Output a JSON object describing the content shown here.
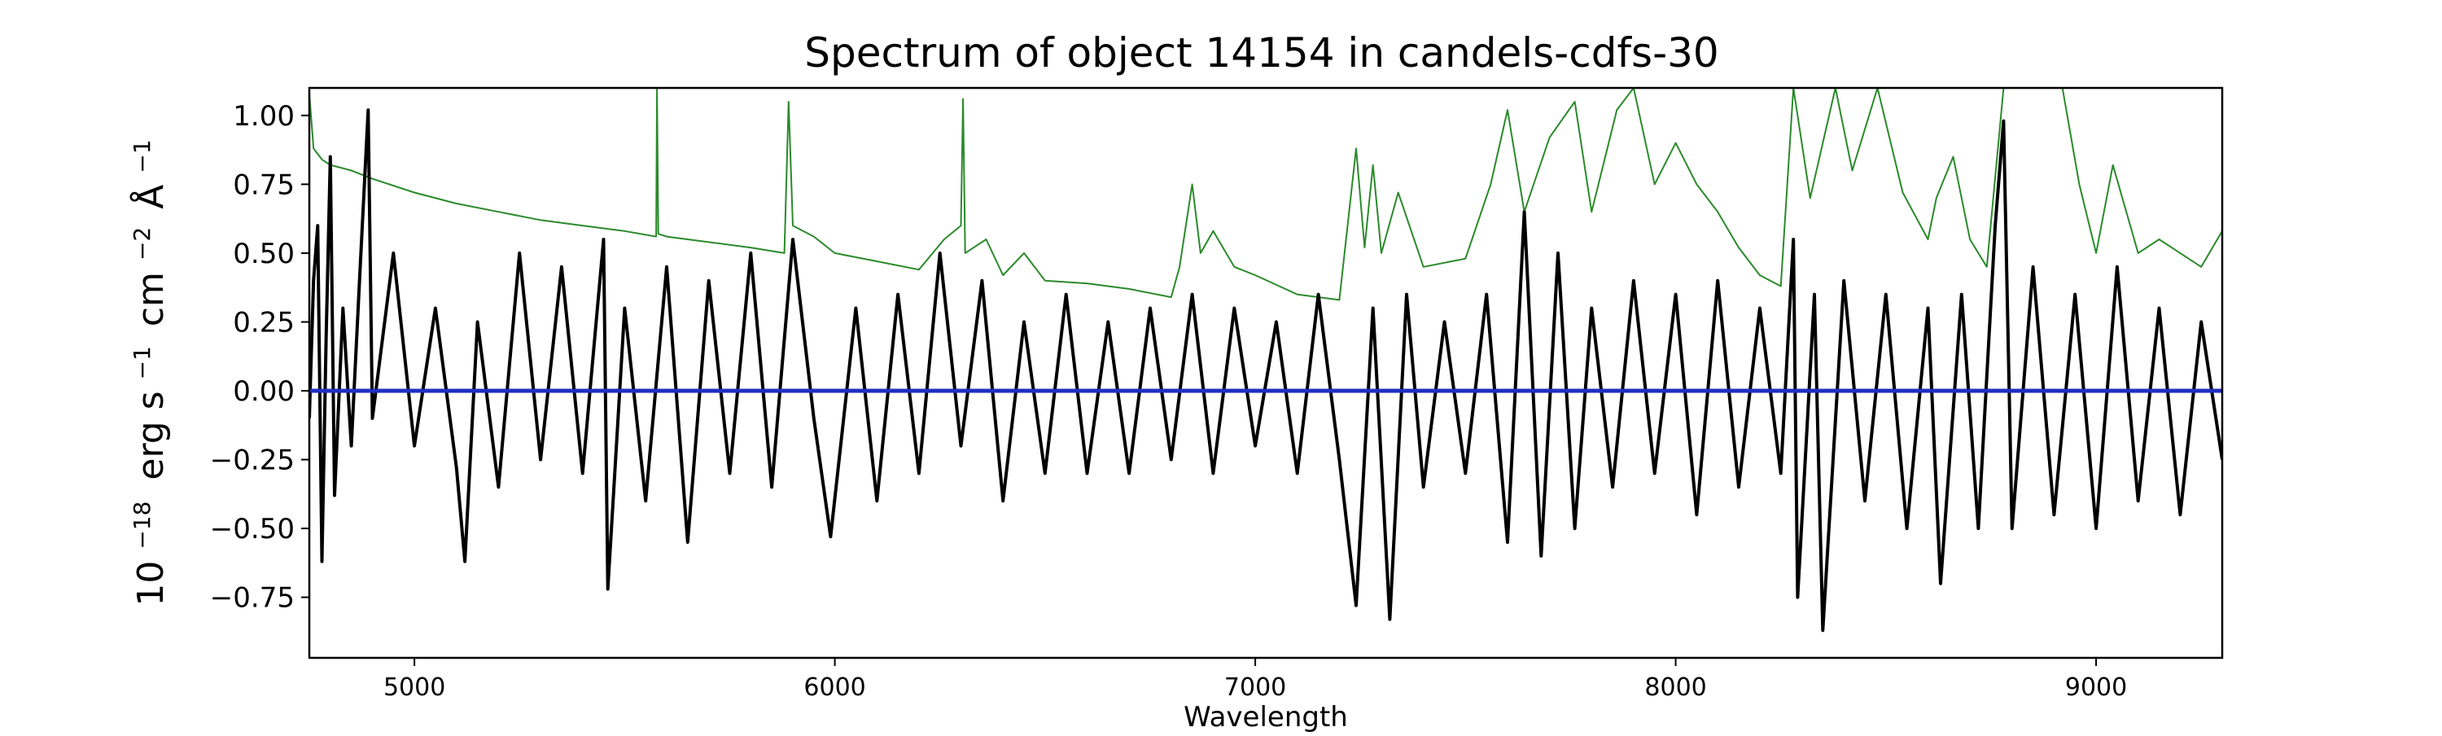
{
  "chart_data": {
    "type": "line",
    "title": "Spectrum of object 14154 in candels-cdfs-30",
    "xlabel": "Wavelength",
    "ylabel": {
      "base": "10",
      "base_exp": "−18",
      "erg": "erg s",
      "s_exp": "−1",
      "cm": "cm",
      "cm_exp": "−2",
      "angstrom": "Å",
      "a_exp": "−1"
    },
    "xlim": [
      4750,
      9300
    ],
    "ylim": [
      -0.97,
      1.1
    ],
    "x_ticks": [
      5000,
      6000,
      7000,
      8000,
      9000
    ],
    "x_tick_labels": [
      "5000",
      "6000",
      "7000",
      "8000",
      "9000"
    ],
    "y_ticks": [
      1.0,
      0.75,
      0.5,
      0.25,
      0.0,
      -0.25,
      -0.5,
      -0.75
    ],
    "y_tick_labels": [
      "1.00",
      "0.75",
      "0.50",
      "0.25",
      "0.00",
      "−0.25",
      "−0.50",
      "−0.75"
    ],
    "grid": false,
    "legend": "none",
    "series": [
      {
        "role": "noise",
        "color": "#2b8a2b",
        "points": [
          [
            4750,
            1.08
          ],
          [
            4760,
            0.88
          ],
          [
            4780,
            0.84
          ],
          [
            4800,
            0.82
          ],
          [
            4850,
            0.8
          ],
          [
            4900,
            0.77
          ],
          [
            5000,
            0.72
          ],
          [
            5100,
            0.68
          ],
          [
            5200,
            0.65
          ],
          [
            5300,
            0.62
          ],
          [
            5400,
            0.6
          ],
          [
            5500,
            0.58
          ],
          [
            5575,
            0.56
          ],
          [
            5577,
            1.1
          ],
          [
            5580,
            0.57
          ],
          [
            5600,
            0.56
          ],
          [
            5700,
            0.54
          ],
          [
            5800,
            0.52
          ],
          [
            5880,
            0.5
          ],
          [
            5890,
            1.05
          ],
          [
            5900,
            0.6
          ],
          [
            5950,
            0.56
          ],
          [
            6000,
            0.5
          ],
          [
            6100,
            0.47
          ],
          [
            6200,
            0.44
          ],
          [
            6260,
            0.55
          ],
          [
            6300,
            0.6
          ],
          [
            6305,
            1.06
          ],
          [
            6310,
            0.5
          ],
          [
            6360,
            0.55
          ],
          [
            6400,
            0.42
          ],
          [
            6450,
            0.5
          ],
          [
            6500,
            0.4
          ],
          [
            6600,
            0.39
          ],
          [
            6700,
            0.37
          ],
          [
            6800,
            0.34
          ],
          [
            6820,
            0.45
          ],
          [
            6850,
            0.75
          ],
          [
            6870,
            0.5
          ],
          [
            6900,
            0.58
          ],
          [
            6950,
            0.45
          ],
          [
            7000,
            0.42
          ],
          [
            7100,
            0.35
          ],
          [
            7200,
            0.33
          ],
          [
            7240,
            0.88
          ],
          [
            7260,
            0.52
          ],
          [
            7280,
            0.82
          ],
          [
            7300,
            0.5
          ],
          [
            7340,
            0.72
          ],
          [
            7400,
            0.45
          ],
          [
            7500,
            0.48
          ],
          [
            7560,
            0.75
          ],
          [
            7600,
            1.02
          ],
          [
            7640,
            0.65
          ],
          [
            7700,
            0.92
          ],
          [
            7760,
            1.05
          ],
          [
            7800,
            0.65
          ],
          [
            7860,
            1.02
          ],
          [
            7900,
            1.1
          ],
          [
            7950,
            0.75
          ],
          [
            8000,
            0.9
          ],
          [
            8050,
            0.75
          ],
          [
            8100,
            0.65
          ],
          [
            8150,
            0.52
          ],
          [
            8200,
            0.42
          ],
          [
            8250,
            0.38
          ],
          [
            8280,
            1.1
          ],
          [
            8320,
            0.7
          ],
          [
            8380,
            1.1
          ],
          [
            8420,
            0.8
          ],
          [
            8480,
            1.1
          ],
          [
            8540,
            0.72
          ],
          [
            8600,
            0.55
          ],
          [
            8620,
            0.7
          ],
          [
            8660,
            0.85
          ],
          [
            8700,
            0.55
          ],
          [
            8740,
            0.45
          ],
          [
            8780,
            1.1
          ],
          [
            8820,
            1.1
          ],
          [
            8880,
            1.1
          ],
          [
            8920,
            1.1
          ],
          [
            8960,
            0.75
          ],
          [
            9000,
            0.5
          ],
          [
            9040,
            0.82
          ],
          [
            9100,
            0.5
          ],
          [
            9150,
            0.55
          ],
          [
            9200,
            0.5
          ],
          [
            9250,
            0.45
          ],
          [
            9300,
            0.58
          ]
        ]
      },
      {
        "role": "flux",
        "color": "#000000",
        "points": [
          [
            4750,
            -0.1
          ],
          [
            4760,
            0.4
          ],
          [
            4770,
            0.6
          ],
          [
            4780,
            -0.62
          ],
          [
            4790,
            0.2
          ],
          [
            4800,
            0.85
          ],
          [
            4810,
            -0.38
          ],
          [
            4830,
            0.3
          ],
          [
            4850,
            -0.2
          ],
          [
            4870,
            0.42
          ],
          [
            4890,
            1.02
          ],
          [
            4900,
            -0.1
          ],
          [
            4950,
            0.5
          ],
          [
            5000,
            -0.2
          ],
          [
            5050,
            0.3
          ],
          [
            5100,
            -0.28
          ],
          [
            5120,
            -0.62
          ],
          [
            5150,
            0.25
          ],
          [
            5200,
            -0.35
          ],
          [
            5250,
            0.5
          ],
          [
            5300,
            -0.25
          ],
          [
            5350,
            0.45
          ],
          [
            5400,
            -0.3
          ],
          [
            5450,
            0.55
          ],
          [
            5460,
            -0.72
          ],
          [
            5500,
            0.3
          ],
          [
            5550,
            -0.4
          ],
          [
            5600,
            0.45
          ],
          [
            5650,
            -0.55
          ],
          [
            5700,
            0.4
          ],
          [
            5750,
            -0.3
          ],
          [
            5800,
            0.5
          ],
          [
            5850,
            -0.35
          ],
          [
            5900,
            0.55
          ],
          [
            5950,
            -0.1
          ],
          [
            5990,
            -0.53
          ],
          [
            6050,
            0.3
          ],
          [
            6100,
            -0.4
          ],
          [
            6150,
            0.35
          ],
          [
            6200,
            -0.3
          ],
          [
            6250,
            0.5
          ],
          [
            6300,
            -0.2
          ],
          [
            6350,
            0.4
          ],
          [
            6400,
            -0.4
          ],
          [
            6450,
            0.25
          ],
          [
            6500,
            -0.3
          ],
          [
            6550,
            0.35
          ],
          [
            6600,
            -0.3
          ],
          [
            6650,
            0.25
          ],
          [
            6700,
            -0.3
          ],
          [
            6750,
            0.3
          ],
          [
            6800,
            -0.25
          ],
          [
            6850,
            0.35
          ],
          [
            6900,
            -0.3
          ],
          [
            6950,
            0.3
          ],
          [
            7000,
            -0.2
          ],
          [
            7050,
            0.25
          ],
          [
            7100,
            -0.3
          ],
          [
            7150,
            0.35
          ],
          [
            7200,
            -0.25
          ],
          [
            7240,
            -0.78
          ],
          [
            7280,
            0.3
          ],
          [
            7320,
            -0.83
          ],
          [
            7360,
            0.35
          ],
          [
            7400,
            -0.35
          ],
          [
            7450,
            0.25
          ],
          [
            7500,
            -0.3
          ],
          [
            7550,
            0.35
          ],
          [
            7600,
            -0.55
          ],
          [
            7640,
            0.65
          ],
          [
            7680,
            -0.6
          ],
          [
            7720,
            0.5
          ],
          [
            7760,
            -0.5
          ],
          [
            7800,
            0.3
          ],
          [
            7850,
            -0.35
          ],
          [
            7900,
            0.4
          ],
          [
            7950,
            -0.3
          ],
          [
            8000,
            0.35
          ],
          [
            8050,
            -0.45
          ],
          [
            8100,
            0.4
          ],
          [
            8150,
            -0.35
          ],
          [
            8200,
            0.3
          ],
          [
            8250,
            -0.3
          ],
          [
            8280,
            0.55
          ],
          [
            8290,
            -0.75
          ],
          [
            8330,
            0.35
          ],
          [
            8350,
            -0.87
          ],
          [
            8400,
            0.4
          ],
          [
            8450,
            -0.4
          ],
          [
            8500,
            0.35
          ],
          [
            8550,
            -0.5
          ],
          [
            8600,
            0.3
          ],
          [
            8630,
            -0.7
          ],
          [
            8680,
            0.35
          ],
          [
            8720,
            -0.5
          ],
          [
            8760,
            0.6
          ],
          [
            8780,
            0.98
          ],
          [
            8800,
            -0.5
          ],
          [
            8850,
            0.45
          ],
          [
            8900,
            -0.45
          ],
          [
            8950,
            0.35
          ],
          [
            9000,
            -0.5
          ],
          [
            9050,
            0.45
          ],
          [
            9100,
            -0.4
          ],
          [
            9150,
            0.3
          ],
          [
            9200,
            -0.45
          ],
          [
            9250,
            0.25
          ],
          [
            9300,
            -0.25
          ]
        ]
      },
      {
        "role": "zero",
        "color": "#1f2fbf",
        "points": [
          [
            4750,
            0.0
          ],
          [
            9300,
            0.0
          ]
        ]
      }
    ]
  }
}
